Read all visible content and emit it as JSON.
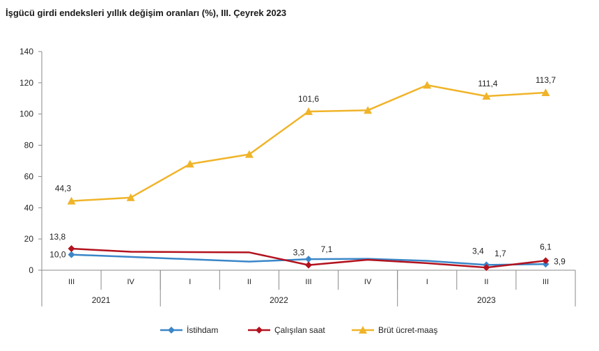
{
  "title": "İşgücü girdi endeksleri yıllık değişim oranları (%), III. Çeyrek 2023",
  "chart_data": {
    "type": "line",
    "title": "İşgücü girdi endeksleri yıllık değişim oranları (%), III. Çeyrek 2023",
    "categories": [
      "III",
      "IV",
      "I",
      "II",
      "III",
      "IV",
      "I",
      "II",
      "III"
    ],
    "years": [
      {
        "label": "2021",
        "span": 2
      },
      {
        "label": "2022",
        "span": 4
      },
      {
        "label": "2023",
        "span": 3
      }
    ],
    "ylim": [
      0,
      140
    ],
    "yticks": [
      "0",
      "20",
      "40",
      "60",
      "80",
      "100",
      "120",
      "140"
    ],
    "grid": false,
    "legend": "bottom",
    "series": [
      {
        "name": "İstihdam",
        "color": "#3a86c8",
        "marker": "diamond",
        "values": [
          10.0,
          8.5,
          7.0,
          5.5,
          7.1,
          7.3,
          6.0,
          3.4,
          3.9
        ]
      },
      {
        "name": "Çalışılan saat",
        "color": "#b3121e",
        "marker": "diamond",
        "values": [
          13.8,
          11.8,
          11.6,
          11.4,
          3.3,
          6.7,
          4.5,
          1.7,
          6.1
        ]
      },
      {
        "name": "Brüt ücret-maaş",
        "color": "#f0b429",
        "marker": "triangle",
        "values": [
          44.3,
          46.5,
          68.0,
          74.2,
          101.6,
          102.4,
          118.5,
          111.4,
          113.7
        ]
      }
    ],
    "data_labels": [
      {
        "series": 0,
        "index": 0,
        "text": "10,0"
      },
      {
        "series": 1,
        "index": 0,
        "text": "13,8"
      },
      {
        "series": 2,
        "index": 0,
        "text": "44,3"
      },
      {
        "series": 1,
        "index": 4,
        "text": "3,3"
      },
      {
        "series": 0,
        "index": 4,
        "text": "7,1"
      },
      {
        "series": 2,
        "index": 4,
        "text": "101,6"
      },
      {
        "series": 0,
        "index": 7,
        "text": "3,4"
      },
      {
        "series": 1,
        "index": 7,
        "text": "1,7"
      },
      {
        "series": 2,
        "index": 7,
        "text": "111,4"
      },
      {
        "series": 1,
        "index": 8,
        "text": "6,1"
      },
      {
        "series": 0,
        "index": 8,
        "text": "3,9"
      },
      {
        "series": 2,
        "index": 8,
        "text": "113,7"
      }
    ]
  }
}
